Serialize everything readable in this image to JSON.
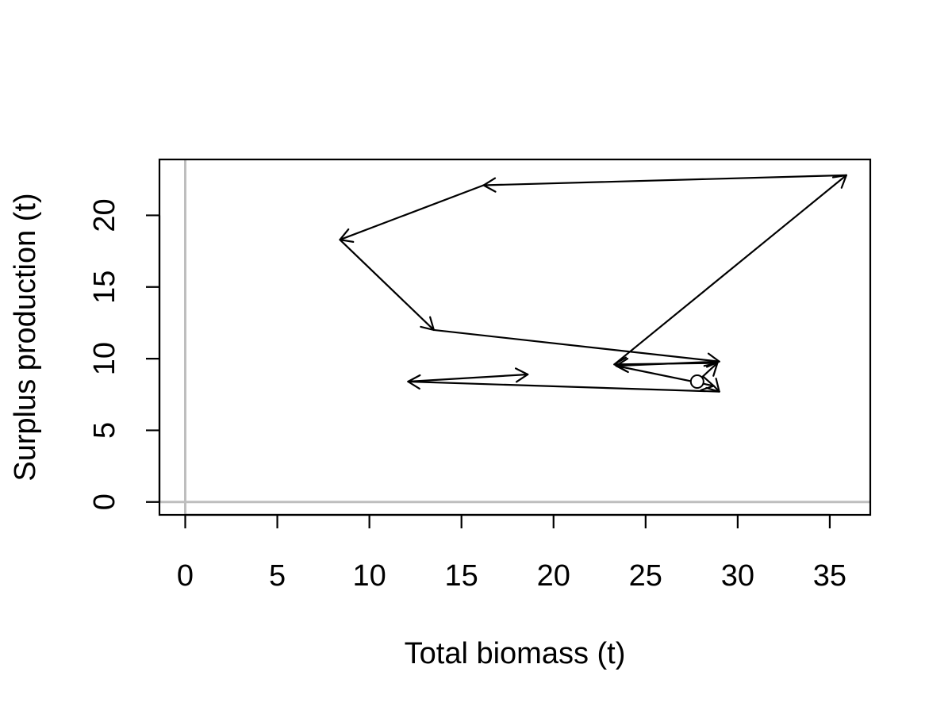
{
  "chart_data": {
    "type": "line",
    "xlabel": "Total biomass (t)",
    "ylabel": "Surplus production (t)",
    "xlim": [
      -1.4,
      37.2
    ],
    "ylim": [
      -0.9,
      23.9
    ],
    "x_ticks": [
      "0",
      "5",
      "10",
      "15",
      "20",
      "25",
      "30",
      "35"
    ],
    "y_ticks": [
      "0",
      "5",
      "10",
      "15",
      "20"
    ],
    "reference_lines": {
      "x": 0,
      "y": 0,
      "color": "#bebebe"
    },
    "grid": false,
    "legend": "none",
    "start_point": {
      "x": 27.8,
      "y": 8.4
    },
    "path": [
      {
        "x": 27.8,
        "y": 8.4
      },
      {
        "x": 28.9,
        "y": 9.7
      },
      {
        "x": 23.3,
        "y": 9.6
      },
      {
        "x": 35.9,
        "y": 22.8
      },
      {
        "x": 16.2,
        "y": 22.1
      },
      {
        "x": 8.4,
        "y": 18.3
      },
      {
        "x": 13.5,
        "y": 12.0
      },
      {
        "x": 29.0,
        "y": 9.8
      },
      {
        "x": 23.4,
        "y": 9.5
      },
      {
        "x": 28.7,
        "y": 8.1
      },
      {
        "x": 29.0,
        "y": 7.7
      },
      {
        "x": 12.1,
        "y": 8.4
      },
      {
        "x": 18.6,
        "y": 8.9
      }
    ],
    "colors": {
      "line": "#000000",
      "axis": "#000000",
      "reference": "#bebebe",
      "point_fill": "#ffffff"
    }
  }
}
